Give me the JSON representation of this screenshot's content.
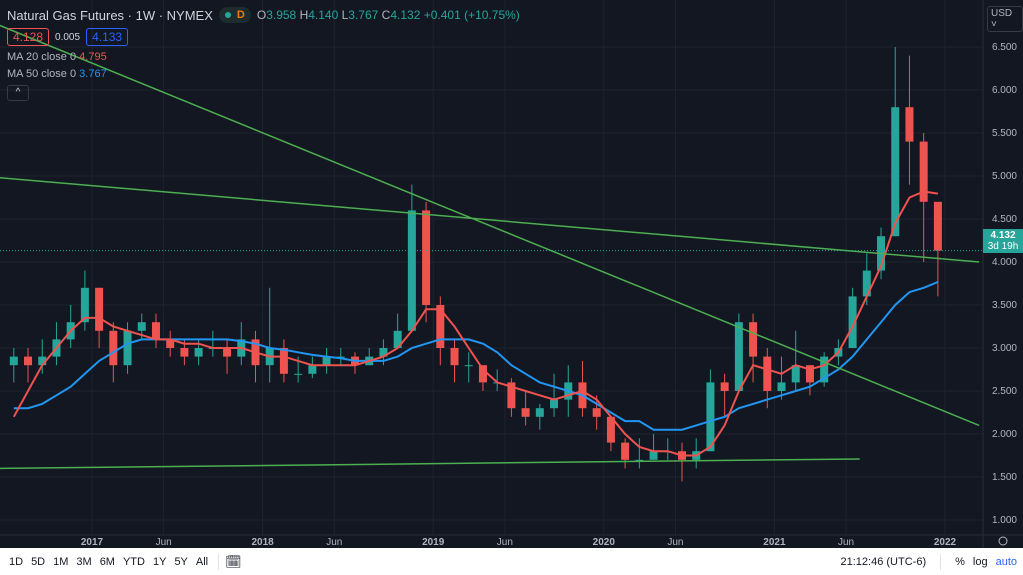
{
  "header": {
    "symbol": "Natural Gas Futures · 1W · NYMEX",
    "mode_badge": "D",
    "ohlc": {
      "o_label": "O",
      "o": "3.958",
      "h_label": "H",
      "h": "4.140",
      "l_label": "L",
      "l": "3.767",
      "c_label": "C",
      "c": "4.132",
      "change": "+0.401 (+10.75%)"
    },
    "bid": "4.128",
    "spread": "0.005",
    "ask": "4.133",
    "collapse_icon": "^"
  },
  "indicators": [
    {
      "label": "MA 20 close 0",
      "value": "4.795",
      "color": "#ef5350"
    },
    {
      "label": "MA 50 close 0",
      "value": "3.767",
      "color": "#2196f3"
    }
  ],
  "price_axis": {
    "currency": "USD",
    "current_price": "4.132",
    "countdown": "3d 19h"
  },
  "colors": {
    "background": "#131722",
    "up": "#26a69a",
    "down": "#ef5350",
    "ma20": "#ef5350",
    "ma50": "#2196f3",
    "trendline": "#4caf50",
    "grid": "#1f2330"
  },
  "bottom_toolbar": {
    "ranges": [
      "1D",
      "5D",
      "1M",
      "3M",
      "6M",
      "YTD",
      "1Y",
      "5Y",
      "All"
    ],
    "date_range_icon": "calendar-goto-icon",
    "time": "21:12:46 (UTC-6)",
    "percent": "%",
    "log": "log",
    "auto": "auto"
  },
  "chart_data": {
    "type": "candlestick",
    "interval_shown": "1W",
    "note_series_resolution": "monthly approximation",
    "start_month": "2016-07",
    "ylim": [
      1.0,
      6.6
    ],
    "yticks": [
      1.0,
      1.5,
      2.0,
      2.5,
      3.0,
      3.5,
      4.0,
      4.5,
      5.0,
      5.5,
      6.0,
      6.5
    ],
    "xticks": [
      {
        "label": "2017",
        "t": 2017.0
      },
      {
        "label": "Jun",
        "t": 2017.42
      },
      {
        "label": "2018",
        "t": 2018.0
      },
      {
        "label": "Jun",
        "t": 2018.42
      },
      {
        "label": "2019",
        "t": 2019.0
      },
      {
        "label": "Jun",
        "t": 2019.42
      },
      {
        "label": "2020",
        "t": 2020.0
      },
      {
        "label": "Jun",
        "t": 2020.42
      },
      {
        "label": "2021",
        "t": 2021.0
      },
      {
        "label": "Jun",
        "t": 2021.42
      },
      {
        "label": "2022",
        "t": 2022.0
      }
    ],
    "close": [
      2.9,
      2.8,
      2.9,
      3.1,
      3.3,
      3.7,
      3.2,
      2.8,
      3.2,
      3.3,
      3.1,
      3.0,
      2.9,
      3.0,
      3.0,
      2.9,
      3.1,
      2.8,
      3.0,
      2.7,
      2.7,
      2.8,
      2.9,
      2.9,
      2.8,
      2.9,
      3.0,
      3.2,
      4.6,
      3.5,
      3.0,
      2.8,
      2.8,
      2.6,
      2.6,
      2.3,
      2.2,
      2.3,
      2.4,
      2.6,
      2.3,
      2.2,
      1.9,
      1.7,
      1.7,
      1.8,
      1.8,
      1.7,
      1.8,
      2.6,
      2.5,
      3.3,
      2.9,
      2.5,
      2.6,
      2.8,
      2.6,
      2.9,
      3.0,
      3.6,
      3.9,
      4.3,
      5.8,
      5.4,
      4.7,
      4.132
    ],
    "high": [
      3.0,
      3.0,
      3.1,
      3.3,
      3.5,
      3.9,
      3.7,
      3.3,
      3.3,
      3.4,
      3.4,
      3.2,
      3.1,
      3.1,
      3.2,
      3.1,
      3.3,
      3.2,
      3.7,
      3.1,
      2.9,
      2.9,
      3.0,
      3.0,
      2.95,
      3.0,
      3.1,
      3.4,
      4.9,
      4.7,
      3.6,
      3.1,
      2.95,
      2.8,
      2.75,
      2.65,
      2.5,
      2.35,
      2.7,
      2.8,
      2.85,
      2.45,
      2.2,
      1.95,
      1.95,
      2.0,
      1.95,
      1.9,
      1.95,
      2.75,
      2.7,
      3.4,
      3.4,
      3.0,
      2.9,
      3.2,
      2.8,
      2.95,
      3.1,
      3.7,
      4.1,
      4.4,
      6.5,
      6.4,
      5.5,
      4.14
    ],
    "low": [
      2.6,
      2.6,
      2.7,
      2.8,
      3.0,
      3.2,
      3.0,
      2.6,
      2.7,
      3.1,
      3.0,
      2.9,
      2.8,
      2.8,
      2.9,
      2.7,
      2.8,
      2.6,
      2.6,
      2.6,
      2.6,
      2.65,
      2.7,
      2.8,
      2.7,
      2.8,
      2.8,
      3.0,
      3.2,
      3.3,
      2.8,
      2.6,
      2.6,
      2.5,
      2.5,
      2.2,
      2.1,
      2.05,
      2.2,
      2.2,
      2.2,
      2.05,
      1.8,
      1.6,
      1.6,
      1.7,
      1.7,
      1.45,
      1.6,
      1.8,
      2.2,
      2.6,
      2.6,
      2.3,
      2.4,
      2.5,
      2.45,
      2.55,
      2.8,
      3.0,
      3.5,
      3.8,
      4.3,
      4.9,
      4.0,
      3.6
    ],
    "ma20": [
      2.2,
      2.5,
      2.8,
      3.0,
      3.2,
      3.35,
      3.35,
      3.25,
      3.2,
      3.15,
      3.1,
      3.1,
      3.05,
      3.05,
      3.0,
      3.0,
      3.0,
      2.95,
      2.9,
      2.9,
      2.85,
      2.8,
      2.8,
      2.8,
      2.8,
      2.85,
      2.9,
      3.0,
      3.2,
      3.45,
      3.45,
      3.25,
      3.0,
      2.75,
      2.6,
      2.55,
      2.5,
      2.45,
      2.4,
      2.45,
      2.5,
      2.4,
      2.2,
      2.0,
      1.85,
      1.8,
      1.8,
      1.75,
      1.75,
      1.85,
      2.1,
      2.5,
      2.8,
      2.75,
      2.7,
      2.8,
      2.75,
      2.8,
      2.95,
      3.25,
      3.6,
      3.95,
      4.45,
      4.75,
      4.82,
      4.795
    ],
    "ma50": [
      2.3,
      2.3,
      2.35,
      2.45,
      2.55,
      2.7,
      2.85,
      2.95,
      3.05,
      3.1,
      3.1,
      3.1,
      3.1,
      3.1,
      3.1,
      3.1,
      3.08,
      3.05,
      3.0,
      2.98,
      2.95,
      2.92,
      2.9,
      2.88,
      2.85,
      2.85,
      2.85,
      2.9,
      3.0,
      3.05,
      3.1,
      3.1,
      3.1,
      3.05,
      2.95,
      2.8,
      2.7,
      2.6,
      2.55,
      2.5,
      2.45,
      2.35,
      2.25,
      2.15,
      2.15,
      2.05,
      2.05,
      2.05,
      2.1,
      2.15,
      2.2,
      2.3,
      2.35,
      2.4,
      2.45,
      2.5,
      2.55,
      2.65,
      2.75,
      2.9,
      3.1,
      3.3,
      3.5,
      3.65,
      3.7,
      3.767
    ],
    "trendlines": [
      {
        "from": {
          "t": 2016.46,
          "price": 6.75
        },
        "to": {
          "t": 2022.2,
          "price": 2.1
        }
      },
      {
        "from": {
          "t": 2016.46,
          "price": 4.98
        },
        "to": {
          "t": 2022.2,
          "price": 4.0
        }
      },
      {
        "from": {
          "t": 2016.46,
          "price": 1.6
        },
        "to": {
          "t": 2021.5,
          "price": 1.71
        }
      }
    ],
    "grid": true
  }
}
